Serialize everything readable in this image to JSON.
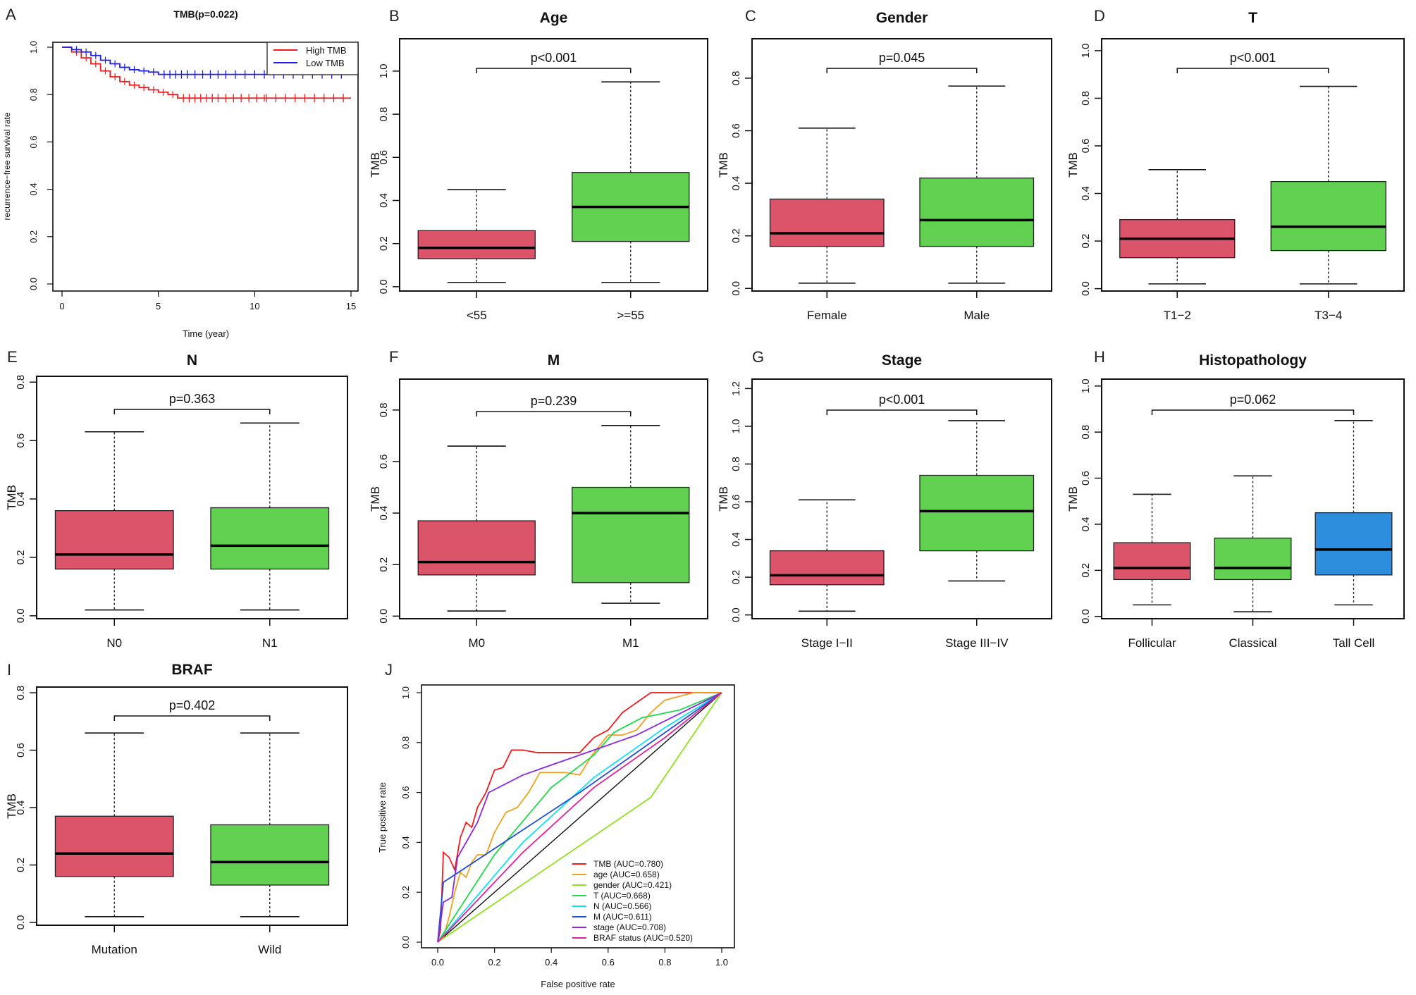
{
  "chart_data": [
    {
      "panel": "A",
      "type": "line",
      "subtype": "kaplan-meier",
      "title": "TMB(p=0.022)",
      "xlabel": "Time (year)",
      "ylabel": "recurrence−free survival rate",
      "xlim": [
        0,
        15
      ],
      "ylim": [
        0,
        1
      ],
      "xticks": [
        "0",
        "5",
        "10",
        "15"
      ],
      "yticks": [
        "0.0",
        "0.2",
        "0.4",
        "0.6",
        "0.8",
        "1.0"
      ],
      "legend": {
        "position": "top-right",
        "entries": [
          "High TMB",
          "Low TMB"
        ]
      },
      "series": [
        {
          "name": "High TMB",
          "color": "#ee1c1c",
          "x": [
            0,
            0.5,
            1,
            1.5,
            2,
            2.5,
            3,
            3.5,
            4,
            4.5,
            5,
            5.5,
            6,
            15
          ],
          "y": [
            1.0,
            0.98,
            0.955,
            0.93,
            0.9,
            0.875,
            0.855,
            0.84,
            0.83,
            0.82,
            0.81,
            0.8,
            0.785,
            0.785
          ],
          "censor_x": [
            6.3,
            6.6,
            6.9,
            7.2,
            7.5,
            7.8,
            8.1,
            8.5,
            8.9,
            9.3,
            9.7,
            10.1,
            10.6,
            11.1,
            11.6,
            12.1,
            12.6,
            13.1,
            13.6,
            14.1,
            14.6
          ]
        },
        {
          "name": "Low TMB",
          "color": "#2020e0",
          "x": [
            0,
            0.5,
            1,
            1.5,
            2,
            2.5,
            3,
            3.5,
            4,
            4.5,
            5,
            15
          ],
          "y": [
            1.0,
            0.99,
            0.98,
            0.965,
            0.945,
            0.93,
            0.915,
            0.905,
            0.9,
            0.895,
            0.885,
            0.885
          ],
          "censor_x": [
            5.3,
            5.6,
            5.9,
            6.2,
            6.5,
            6.9,
            7.3,
            7.7,
            8.1,
            8.5,
            9.0,
            9.5,
            10.0,
            10.5,
            11.0,
            11.5,
            12.0,
            12.5,
            13.0,
            13.5,
            14.0,
            14.5
          ]
        }
      ]
    },
    {
      "panel": "B",
      "type": "box",
      "title": "Age",
      "ylabel": "TMB",
      "ylim": [
        -0.02,
        1.15
      ],
      "yticks": [
        0,
        0.2,
        0.4,
        0.6,
        0.8,
        1.0
      ],
      "ytick_labels": [
        "0.0",
        "0.2",
        "0.4",
        "0.6",
        "0.8",
        "1.0"
      ],
      "pvalue": "p<0.001",
      "groups": [
        {
          "name": "<55",
          "color": "#dc5469",
          "min": 0.02,
          "q1": 0.13,
          "median": 0.18,
          "q3": 0.26,
          "max": 0.45
        },
        {
          "name": ">=55",
          "color": "#62d152",
          "min": 0.02,
          "q1": 0.21,
          "median": 0.37,
          "q3": 0.53,
          "max": 0.95
        }
      ]
    },
    {
      "panel": "C",
      "type": "box",
      "title": "Gender",
      "ylabel": "TMB",
      "ylim": [
        -0.01,
        0.95
      ],
      "yticks": [
        0,
        0.2,
        0.4,
        0.6,
        0.8
      ],
      "ytick_labels": [
        "0.0",
        "0.2",
        "0.4",
        "0.6",
        "0.8"
      ],
      "pvalue": "p=0.045",
      "groups": [
        {
          "name": "Female",
          "color": "#dc5469",
          "min": 0.02,
          "q1": 0.16,
          "median": 0.21,
          "q3": 0.34,
          "max": 0.61
        },
        {
          "name": "Male",
          "color": "#62d152",
          "min": 0.02,
          "q1": 0.16,
          "median": 0.26,
          "q3": 0.42,
          "max": 0.77
        }
      ]
    },
    {
      "panel": "D",
      "type": "box",
      "title": "T",
      "ylabel": "TMB",
      "ylim": [
        -0.01,
        1.05
      ],
      "yticks": [
        0,
        0.2,
        0.4,
        0.6,
        0.8,
        1.0
      ],
      "ytick_labels": [
        "0.0",
        "0.2",
        "0.4",
        "0.6",
        "0.8",
        "1.0"
      ],
      "pvalue": "p<0.001",
      "groups": [
        {
          "name": "T1−2",
          "color": "#dc5469",
          "min": 0.02,
          "q1": 0.13,
          "median": 0.21,
          "q3": 0.29,
          "max": 0.5
        },
        {
          "name": "T3−4",
          "color": "#62d152",
          "min": 0.02,
          "q1": 0.16,
          "median": 0.26,
          "q3": 0.45,
          "max": 0.85
        }
      ]
    },
    {
      "panel": "E",
      "type": "box",
      "title": "N",
      "ylabel": "TMB",
      "ylim": [
        -0.01,
        0.82
      ],
      "yticks": [
        0,
        0.2,
        0.4,
        0.6,
        0.8
      ],
      "ytick_labels": [
        "0.0",
        "0.2",
        "0.4",
        "0.6",
        "0.8"
      ],
      "pvalue": "p=0.363",
      "groups": [
        {
          "name": "N0",
          "color": "#dc5469",
          "min": 0.02,
          "q1": 0.16,
          "median": 0.21,
          "q3": 0.36,
          "max": 0.63
        },
        {
          "name": "N1",
          "color": "#62d152",
          "min": 0.02,
          "q1": 0.16,
          "median": 0.24,
          "q3": 0.37,
          "max": 0.66
        }
      ]
    },
    {
      "panel": "F",
      "type": "box",
      "title": "M",
      "ylabel": "TMB",
      "ylim": [
        -0.01,
        0.92
      ],
      "yticks": [
        0,
        0.2,
        0.4,
        0.6,
        0.8
      ],
      "ytick_labels": [
        "0.0",
        "0.2",
        "0.4",
        "0.6",
        "0.8"
      ],
      "pvalue": "p=0.239",
      "groups": [
        {
          "name": "M0",
          "color": "#dc5469",
          "min": 0.02,
          "q1": 0.16,
          "median": 0.21,
          "q3": 0.37,
          "max": 0.66
        },
        {
          "name": "M1",
          "color": "#62d152",
          "min": 0.05,
          "q1": 0.13,
          "median": 0.4,
          "q3": 0.5,
          "max": 0.74
        }
      ]
    },
    {
      "panel": "G",
      "type": "box",
      "title": "Stage",
      "ylabel": "TMB",
      "ylim": [
        -0.02,
        1.25
      ],
      "yticks": [
        0,
        0.2,
        0.4,
        0.6,
        0.8,
        1.0,
        1.2
      ],
      "ytick_labels": [
        "0.0",
        "0.2",
        "0.4",
        "0.6",
        "0.8",
        "1.0",
        "1.2"
      ],
      "pvalue": "p<0.001",
      "groups": [
        {
          "name": "Stage I−II",
          "color": "#dc5469",
          "min": 0.02,
          "q1": 0.16,
          "median": 0.21,
          "q3": 0.34,
          "max": 0.61
        },
        {
          "name": "Stage III−IV",
          "color": "#62d152",
          "min": 0.18,
          "q1": 0.34,
          "median": 0.55,
          "q3": 0.74,
          "max": 1.03
        }
      ]
    },
    {
      "panel": "H",
      "type": "box",
      "title": "Histopathology",
      "ylabel": "TMB",
      "ylim": [
        -0.01,
        1.03
      ],
      "yticks": [
        0,
        0.2,
        0.4,
        0.6,
        0.8,
        1.0
      ],
      "ytick_labels": [
        "0.0",
        "0.2",
        "0.4",
        "0.6",
        "0.8",
        "1.0"
      ],
      "pvalue": "p=0.062",
      "groups": [
        {
          "name": "Follicular",
          "color": "#dc5469",
          "min": 0.05,
          "q1": 0.16,
          "median": 0.21,
          "q3": 0.32,
          "max": 0.53
        },
        {
          "name": "Classical",
          "color": "#62d152",
          "min": 0.02,
          "q1": 0.16,
          "median": 0.21,
          "q3": 0.34,
          "max": 0.61
        },
        {
          "name": "Tall Cell",
          "color": "#2d8ee0",
          "min": 0.05,
          "q1": 0.18,
          "median": 0.29,
          "q3": 0.45,
          "max": 0.85
        }
      ]
    },
    {
      "panel": "I",
      "type": "box",
      "title": "BRAF",
      "ylabel": "TMB",
      "ylim": [
        -0.01,
        0.82
      ],
      "yticks": [
        0,
        0.2,
        0.4,
        0.6,
        0.8
      ],
      "ytick_labels": [
        "0.0",
        "0.2",
        "0.4",
        "0.6",
        "0.8"
      ],
      "pvalue": "p=0.402",
      "groups": [
        {
          "name": "Mutation",
          "color": "#dc5469",
          "min": 0.02,
          "q1": 0.16,
          "median": 0.24,
          "q3": 0.37,
          "max": 0.66
        },
        {
          "name": "Wild",
          "color": "#62d152",
          "min": 0.02,
          "q1": 0.13,
          "median": 0.21,
          "q3": 0.34,
          "max": 0.66
        }
      ]
    },
    {
      "panel": "J",
      "type": "line",
      "subtype": "roc",
      "xlabel": "False positive rate",
      "ylabel": "True positive rate",
      "xlim": [
        0,
        1
      ],
      "ylim": [
        0,
        1
      ],
      "xticks": [
        "0.0",
        "0.2",
        "0.4",
        "0.6",
        "0.8",
        "1.0"
      ],
      "yticks": [
        "0.0",
        "0.2",
        "0.4",
        "0.6",
        "0.8",
        "1.0"
      ],
      "legend": {
        "position": "bottom-right"
      },
      "series": [
        {
          "name": "TMB (AUC=0.780)",
          "color": "#ee1c1c",
          "x": [
            0,
            0.01,
            0.02,
            0.04,
            0.06,
            0.08,
            0.1,
            0.12,
            0.14,
            0.17,
            0.2,
            0.23,
            0.26,
            0.3,
            0.35,
            0.4,
            0.45,
            0.5,
            0.55,
            0.6,
            0.65,
            0.7,
            0.75,
            0.85,
            1.0
          ],
          "y": [
            0,
            0.05,
            0.36,
            0.34,
            0.29,
            0.42,
            0.48,
            0.46,
            0.54,
            0.6,
            0.69,
            0.7,
            0.77,
            0.77,
            0.76,
            0.76,
            0.76,
            0.76,
            0.82,
            0.85,
            0.92,
            0.96,
            1.0,
            1.0,
            1.0
          ]
        },
        {
          "name": "age (AUC=0.658)",
          "color": "#f0a020",
          "x": [
            0,
            0.02,
            0.04,
            0.06,
            0.08,
            0.1,
            0.12,
            0.14,
            0.17,
            0.2,
            0.24,
            0.28,
            0.32,
            0.36,
            0.4,
            0.45,
            0.5,
            0.55,
            0.6,
            0.65,
            0.7,
            0.75,
            0.8,
            0.9,
            1.0
          ],
          "y": [
            0,
            0.02,
            0.1,
            0.2,
            0.28,
            0.26,
            0.32,
            0.35,
            0.35,
            0.44,
            0.52,
            0.54,
            0.6,
            0.68,
            0.68,
            0.68,
            0.67,
            0.76,
            0.83,
            0.83,
            0.85,
            0.92,
            0.97,
            1.0,
            1.0
          ]
        },
        {
          "name": "gender (AUC=0.421)",
          "color": "#8ee21e",
          "x": [
            0,
            0.75,
            1.0
          ],
          "y": [
            0,
            0.58,
            1.0
          ]
        },
        {
          "name": "T (AUC=0.668)",
          "color": "#22d84a",
          "x": [
            0,
            0.2,
            0.4,
            0.55,
            0.62,
            0.72,
            0.85,
            1.0
          ],
          "y": [
            0,
            0.35,
            0.62,
            0.75,
            0.84,
            0.9,
            0.93,
            1.0
          ]
        },
        {
          "name": "N (AUC=0.566)",
          "color": "#11dff0",
          "x": [
            0,
            0.3,
            0.55,
            0.8,
            1.0
          ],
          "y": [
            0,
            0.4,
            0.66,
            0.86,
            1.0
          ]
        },
        {
          "name": "M (AUC=0.611)",
          "color": "#1f4fd6",
          "x": [
            0,
            0.02,
            0.5,
            1.0
          ],
          "y": [
            0,
            0.24,
            0.6,
            1.0
          ]
        },
        {
          "name": "stage (AUC=0.708)",
          "color": "#8a28e0",
          "x": [
            0,
            0.02,
            0.05,
            0.07,
            0.14,
            0.18,
            0.3,
            0.5,
            0.7,
            1.0
          ],
          "y": [
            0,
            0.16,
            0.18,
            0.34,
            0.48,
            0.6,
            0.67,
            0.75,
            0.83,
            1.0
          ]
        },
        {
          "name": "BRAF status (AUC=0.520)",
          "color": "#e0209a",
          "x": [
            0,
            0.3,
            0.55,
            0.8,
            1.0
          ],
          "y": [
            0,
            0.36,
            0.62,
            0.82,
            1.0
          ]
        }
      ]
    }
  ]
}
